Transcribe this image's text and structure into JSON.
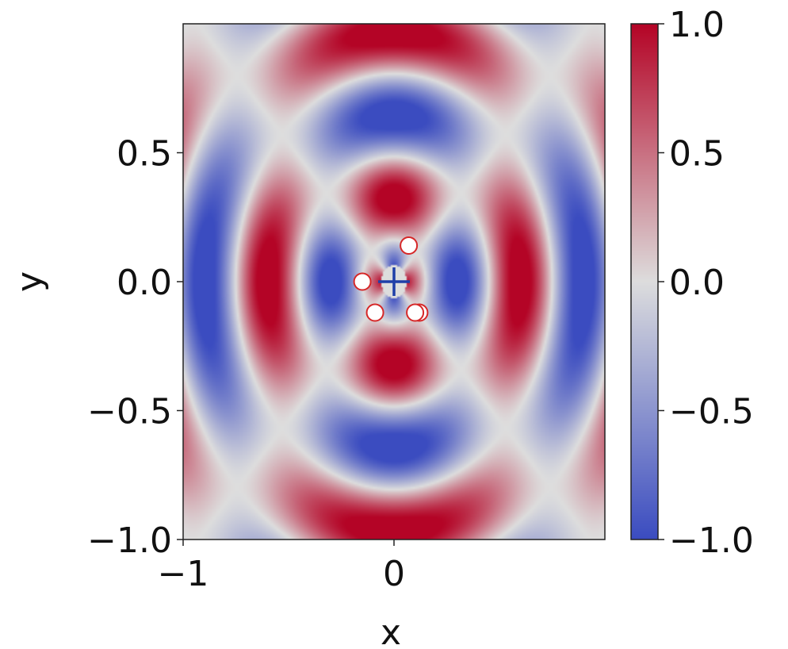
{
  "chart_data": {
    "type": "heatmap",
    "title": "",
    "xlabel": "x",
    "ylabel": "y",
    "xlim": [
      -1.0,
      1.0
    ],
    "ylim": [
      -1.0,
      1.0
    ],
    "x_ticks": [
      -1,
      0
    ],
    "x_tick_labels": [
      "−1",
      "0"
    ],
    "y_ticks": [
      -1.0,
      -0.5,
      0.0,
      0.5
    ],
    "y_tick_labels": [
      "−1.0",
      "−0.5",
      "0.0",
      "0.5"
    ],
    "colormap": "coolwarm",
    "colorbar": {
      "range": [
        -1.0,
        1.0
      ],
      "ticks": [
        -1.0,
        -0.5,
        0.0,
        0.5,
        1.0
      ],
      "tick_labels": [
        "−1.0",
        "−0.5",
        "0.0",
        "0.5",
        "1.0"
      ],
      "colors": {
        "min": "#3b4cc0",
        "mid": "#dddddd",
        "max": "#b40426"
      }
    },
    "field_description": "oscillating concentric pattern, range -1 to 1",
    "center_marker": {
      "x": 0.0,
      "y": 0.0,
      "symbol": "+",
      "color": "#1f3fa8"
    },
    "points": [
      {
        "x": -0.15,
        "y": 0.0
      },
      {
        "x": 0.07,
        "y": 0.14
      },
      {
        "x": -0.09,
        "y": -0.12
      },
      {
        "x": 0.12,
        "y": -0.12
      },
      {
        "x": 0.1,
        "y": -0.12
      }
    ],
    "point_style": {
      "fill": "#ffffff",
      "edge": "#d62728"
    }
  }
}
